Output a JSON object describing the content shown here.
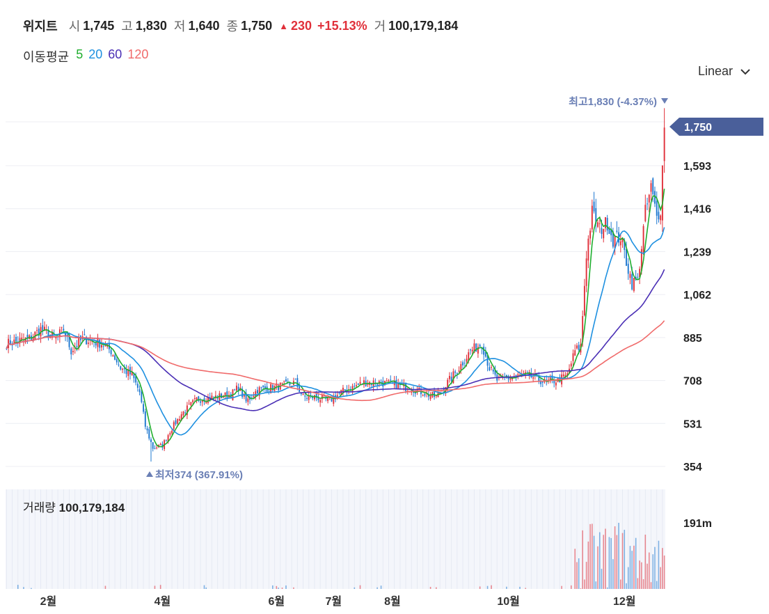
{
  "header": {
    "name": "위지트",
    "open_label": "시",
    "open": "1,745",
    "high_label": "고",
    "high": "1,830",
    "low_label": "저",
    "low": "1,640",
    "close_label": "종",
    "close": "1,750",
    "change": "230",
    "change_pct": "+15.13%",
    "volume_label": "거",
    "volume": "100,179,184"
  },
  "ma_legend": {
    "label": "이동평균",
    "items": [
      {
        "period": "5",
        "color": "#1fae2e"
      },
      {
        "period": "20",
        "color": "#1e90e0"
      },
      {
        "period": "60",
        "color": "#4a2fb5"
      },
      {
        "period": "120",
        "color": "#f06a6a"
      }
    ]
  },
  "scale_selector": {
    "label": "Linear",
    "icon": "chevron-down-icon"
  },
  "colors": {
    "up": "#e0303a",
    "down": "#1e78d0",
    "price_tag": "#4a5f9a",
    "annotation": "#6a7fb5"
  },
  "annotations": {
    "high": "최고1,830 (-4.37%)",
    "low": "최저374 (367.91%)",
    "current_price": "1,750"
  },
  "volume_panel": {
    "label": "거래량",
    "value": "100,179,184",
    "axis_label": "191m"
  },
  "chart_data": {
    "type": "candlestick",
    "y_ticks": [
      354,
      531,
      708,
      885,
      1062,
      1239,
      1416,
      1593
    ],
    "y_tick_labels": [
      "354",
      "531",
      "708",
      "885",
      "1,062",
      "1,239",
      "1,416",
      "1,593"
    ],
    "ylim": [
      330,
      1880
    ],
    "x_labels": [
      "2월",
      "4월",
      "6월",
      "7월",
      "8월",
      "10월",
      "12월"
    ],
    "x_label_days": [
      22,
      82,
      142,
      172,
      203,
      264,
      325
    ],
    "n_days": 347,
    "price_anchors": [
      [
        0,
        860
      ],
      [
        12,
        880
      ],
      [
        18,
        920
      ],
      [
        26,
        880
      ],
      [
        30,
        920
      ],
      [
        34,
        830
      ],
      [
        40,
        880
      ],
      [
        50,
        860
      ],
      [
        55,
        830
      ],
      [
        60,
        760
      ],
      [
        66,
        730
      ],
      [
        70,
        660
      ],
      [
        73,
        520
      ],
      [
        77,
        430
      ],
      [
        82,
        440
      ],
      [
        86,
        500
      ],
      [
        92,
        570
      ],
      [
        100,
        630
      ],
      [
        110,
        640
      ],
      [
        118,
        650
      ],
      [
        122,
        680
      ],
      [
        126,
        620
      ],
      [
        132,
        670
      ],
      [
        140,
        680
      ],
      [
        148,
        690
      ],
      [
        152,
        700
      ],
      [
        156,
        640
      ],
      [
        162,
        640
      ],
      [
        170,
        625
      ],
      [
        176,
        660
      ],
      [
        182,
        680
      ],
      [
        188,
        700
      ],
      [
        196,
        700
      ],
      [
        205,
        690
      ],
      [
        215,
        670
      ],
      [
        222,
        650
      ],
      [
        226,
        640
      ],
      [
        232,
        700
      ],
      [
        238,
        760
      ],
      [
        244,
        830
      ],
      [
        250,
        860
      ],
      [
        254,
        760
      ],
      [
        258,
        710
      ],
      [
        265,
        720
      ],
      [
        272,
        730
      ],
      [
        278,
        720
      ],
      [
        283,
        700
      ],
      [
        290,
        710
      ],
      [
        295,
        730
      ],
      [
        299,
        830
      ],
      [
        302,
        850
      ],
      [
        305,
        1230
      ],
      [
        308,
        1400
      ],
      [
        312,
        1330
      ],
      [
        316,
        1360
      ],
      [
        319,
        1290
      ],
      [
        323,
        1300
      ],
      [
        326,
        1200
      ],
      [
        329,
        1110
      ],
      [
        332,
        1120
      ],
      [
        336,
        1400
      ],
      [
        339,
        1500
      ],
      [
        342,
        1380
      ],
      [
        344,
        1420
      ],
      [
        346,
        1750
      ]
    ],
    "high_point": {
      "day": 346,
      "value": 1830
    },
    "low_point": {
      "day": 76,
      "value": 374
    },
    "last_close": 1750,
    "volume_max_label": "191m"
  }
}
